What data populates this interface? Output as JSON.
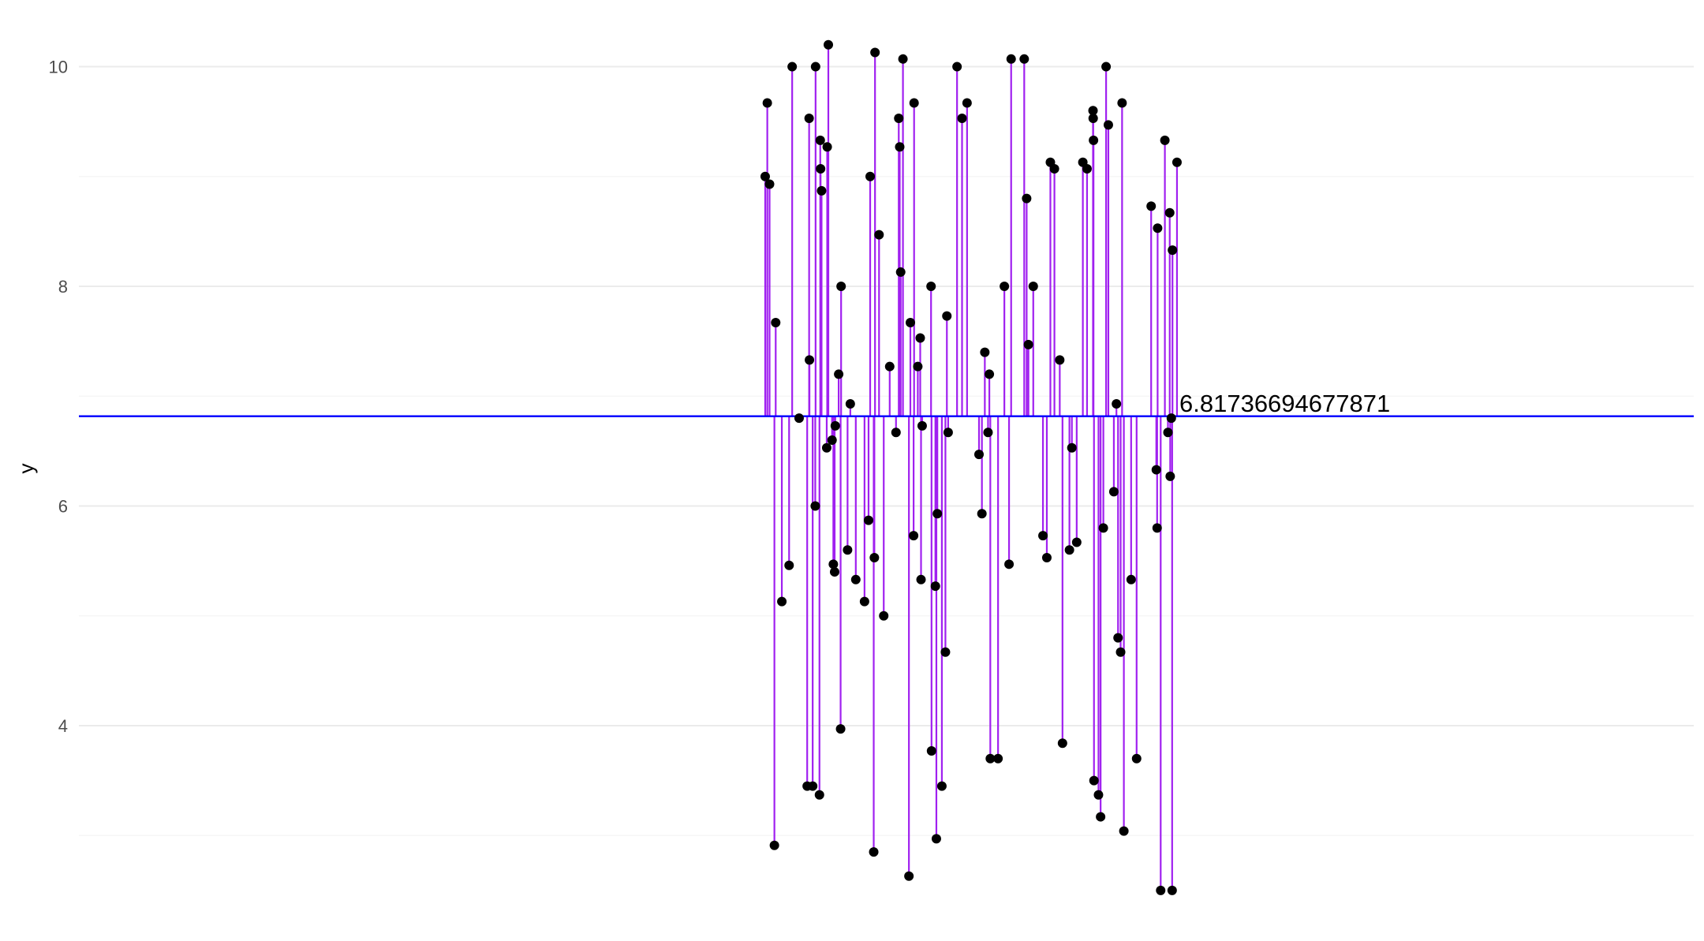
{
  "chart_data": {
    "type": "lollipop",
    "ylabel": "y",
    "xlabel": "",
    "ylim": [
      2.42,
      10.32
    ],
    "y_ticks": [
      "4",
      "6",
      "8",
      "10"
    ],
    "grid": true,
    "reference": {
      "value": 6.81736694677871,
      "label": "6.81736694677871"
    },
    "colors": {
      "stem": "#a020f0",
      "reference": "#0000ff",
      "point": "#000000",
      "grid_major": "#ebebeb",
      "grid_minor": "#f4f4f4"
    },
    "xlim": [
      0,
      100
    ],
    "points": [
      {
        "x": 42.5,
        "y": 9.0
      },
      {
        "x": 42.63,
        "y": 9.67
      },
      {
        "x": 42.77,
        "y": 8.93
      },
      {
        "x": 43.07,
        "y": 2.91
      },
      {
        "x": 43.15,
        "y": 7.67
      },
      {
        "x": 43.53,
        "y": 5.13
      },
      {
        "x": 43.98,
        "y": 5.46
      },
      {
        "x": 44.17,
        "y": 10.0
      },
      {
        "x": 44.6,
        "y": 6.8
      },
      {
        "x": 45.1,
        "y": 3.45
      },
      {
        "x": 45.22,
        "y": 9.53
      },
      {
        "x": 45.24,
        "y": 7.33
      },
      {
        "x": 45.44,
        "y": 3.45
      },
      {
        "x": 45.6,
        "y": 6.0
      },
      {
        "x": 45.62,
        "y": 10.0
      },
      {
        "x": 45.86,
        "y": 3.37
      },
      {
        "x": 45.91,
        "y": 9.33
      },
      {
        "x": 45.93,
        "y": 9.07
      },
      {
        "x": 45.99,
        "y": 8.87
      },
      {
        "x": 46.31,
        "y": 6.53
      },
      {
        "x": 46.34,
        "y": 9.27
      },
      {
        "x": 46.41,
        "y": 10.2
      },
      {
        "x": 46.64,
        "y": 6.6
      },
      {
        "x": 46.72,
        "y": 5.47
      },
      {
        "x": 46.8,
        "y": 5.4
      },
      {
        "x": 46.84,
        "y": 6.73
      },
      {
        "x": 47.05,
        "y": 7.2
      },
      {
        "x": 47.17,
        "y": 3.97
      },
      {
        "x": 47.2,
        "y": 8.0
      },
      {
        "x": 47.6,
        "y": 5.6
      },
      {
        "x": 47.77,
        "y": 6.93
      },
      {
        "x": 48.11,
        "y": 5.33
      },
      {
        "x": 48.65,
        "y": 5.13
      },
      {
        "x": 48.9,
        "y": 5.87
      },
      {
        "x": 49.0,
        "y": 9.0
      },
      {
        "x": 49.22,
        "y": 2.85
      },
      {
        "x": 49.26,
        "y": 5.53
      },
      {
        "x": 49.3,
        "y": 10.13
      },
      {
        "x": 49.55,
        "y": 8.47
      },
      {
        "x": 49.84,
        "y": 5.0
      },
      {
        "x": 50.21,
        "y": 7.27
      },
      {
        "x": 50.6,
        "y": 6.67
      },
      {
        "x": 50.77,
        "y": 9.53
      },
      {
        "x": 50.83,
        "y": 9.27
      },
      {
        "x": 50.89,
        "y": 8.13
      },
      {
        "x": 51.03,
        "y": 10.07
      },
      {
        "x": 51.4,
        "y": 2.63
      },
      {
        "x": 51.49,
        "y": 7.67
      },
      {
        "x": 51.69,
        "y": 5.73
      },
      {
        "x": 51.72,
        "y": 9.67
      },
      {
        "x": 51.95,
        "y": 7.27
      },
      {
        "x": 52.1,
        "y": 7.53
      },
      {
        "x": 52.15,
        "y": 5.33
      },
      {
        "x": 52.22,
        "y": 6.73
      },
      {
        "x": 52.8,
        "y": 3.77
      },
      {
        "x": 52.77,
        "y": 8.0
      },
      {
        "x": 53.04,
        "y": 5.27
      },
      {
        "x": 53.1,
        "y": 2.97
      },
      {
        "x": 53.16,
        "y": 5.93
      },
      {
        "x": 53.44,
        "y": 3.45
      },
      {
        "x": 53.66,
        "y": 4.67
      },
      {
        "x": 53.75,
        "y": 7.73
      },
      {
        "x": 53.83,
        "y": 6.67
      },
      {
        "x": 54.38,
        "y": 10.0
      },
      {
        "x": 54.69,
        "y": 9.53
      },
      {
        "x": 55.0,
        "y": 9.67
      },
      {
        "x": 55.74,
        "y": 6.47
      },
      {
        "x": 55.92,
        "y": 5.93
      },
      {
        "x": 56.1,
        "y": 7.4
      },
      {
        "x": 56.3,
        "y": 6.67
      },
      {
        "x": 56.38,
        "y": 7.2
      },
      {
        "x": 56.44,
        "y": 3.7
      },
      {
        "x": 56.92,
        "y": 3.7
      },
      {
        "x": 57.31,
        "y": 8.0
      },
      {
        "x": 57.6,
        "y": 5.47
      },
      {
        "x": 57.73,
        "y": 10.07
      },
      {
        "x": 58.54,
        "y": 10.07
      },
      {
        "x": 58.69,
        "y": 8.8
      },
      {
        "x": 58.8,
        "y": 7.47
      },
      {
        "x": 59.1,
        "y": 8.0
      },
      {
        "x": 59.7,
        "y": 5.73
      },
      {
        "x": 59.94,
        "y": 5.53
      },
      {
        "x": 60.16,
        "y": 9.13
      },
      {
        "x": 60.41,
        "y": 9.07
      },
      {
        "x": 60.74,
        "y": 7.33
      },
      {
        "x": 60.91,
        "y": 3.84
      },
      {
        "x": 61.34,
        "y": 5.6
      },
      {
        "x": 61.49,
        "y": 6.53
      },
      {
        "x": 61.79,
        "y": 5.67
      },
      {
        "x": 62.17,
        "y": 9.13
      },
      {
        "x": 62.43,
        "y": 9.07
      },
      {
        "x": 62.8,
        "y": 9.6
      },
      {
        "x": 62.81,
        "y": 9.53
      },
      {
        "x": 62.83,
        "y": 9.33
      },
      {
        "x": 62.86,
        "y": 3.5
      },
      {
        "x": 63.14,
        "y": 3.37
      },
      {
        "x": 63.27,
        "y": 3.17
      },
      {
        "x": 63.44,
        "y": 5.8
      },
      {
        "x": 63.61,
        "y": 10.0
      },
      {
        "x": 63.75,
        "y": 9.47
      },
      {
        "x": 64.09,
        "y": 6.13
      },
      {
        "x": 64.25,
        "y": 6.93
      },
      {
        "x": 64.35,
        "y": 4.8
      },
      {
        "x": 64.51,
        "y": 4.67
      },
      {
        "x": 64.6,
        "y": 9.67
      },
      {
        "x": 64.71,
        "y": 3.04
      },
      {
        "x": 65.16,
        "y": 5.33
      },
      {
        "x": 65.5,
        "y": 3.7
      },
      {
        "x": 66.4,
        "y": 8.73
      },
      {
        "x": 66.72,
        "y": 6.33
      },
      {
        "x": 66.77,
        "y": 5.8
      },
      {
        "x": 66.8,
        "y": 8.53
      },
      {
        "x": 66.99,
        "y": 2.5
      },
      {
        "x": 67.25,
        "y": 9.33
      },
      {
        "x": 67.44,
        "y": 6.67
      },
      {
        "x": 67.55,
        "y": 8.67
      },
      {
        "x": 67.58,
        "y": 6.27
      },
      {
        "x": 67.65,
        "y": 6.8
      },
      {
        "x": 67.7,
        "y": 2.5
      },
      {
        "x": 67.72,
        "y": 8.33
      },
      {
        "x": 68.0,
        "y": 9.13
      }
    ]
  }
}
